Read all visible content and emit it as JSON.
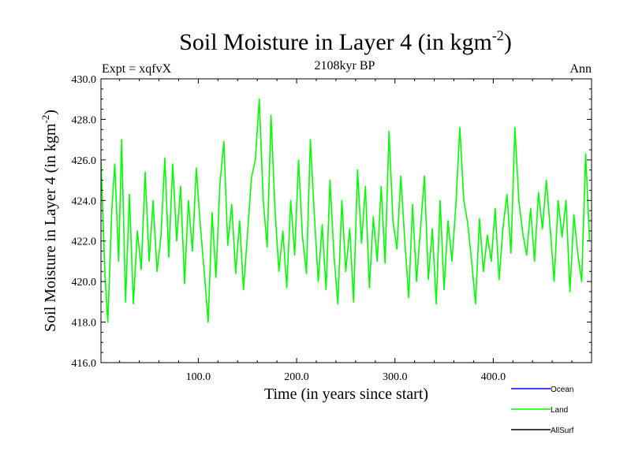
{
  "chart_data": {
    "type": "line",
    "title": "Soil Moisture in Layer 4 (in kgm",
    "title_sup": "-2",
    "title_close": ")",
    "subtitle": "2108kyr BP",
    "left_label": "Expt = xqfvX",
    "right_label": "Ann",
    "xlabel": "Time (in years since start)",
    "ylabel": "Soil Moisture in Layer 4 (in kgm",
    "ylabel_sup": "-2",
    "ylabel_close": ")",
    "xlim": [
      1,
      500
    ],
    "ylim": [
      416,
      430
    ],
    "xticks": [
      100,
      200,
      300,
      400
    ],
    "xtick_labels": [
      "100.0",
      "200.0",
      "300.0",
      "400.0"
    ],
    "yticks": [
      416,
      418,
      420,
      422,
      424,
      426,
      428,
      430
    ],
    "ytick_labels": [
      "416.0",
      "418.0",
      "420.0",
      "422.0",
      "424.0",
      "426.0",
      "428.0",
      "430.0"
    ],
    "legend": [
      {
        "name": "Ocean",
        "color": "#0000ff"
      },
      {
        "name": "Land",
        "color": "#00ff00"
      },
      {
        "name": "AllSurf",
        "color": "#000000"
      }
    ],
    "series": [
      {
        "name": "Land",
        "color": "#00ff00",
        "x": [
          1,
          5,
          8,
          12,
          15,
          19,
          22,
          26,
          30,
          34,
          38,
          42,
          46,
          50,
          54,
          58,
          62,
          66,
          70,
          74,
          78,
          82,
          86,
          90,
          94,
          98,
          102,
          106,
          110,
          114,
          118,
          122,
          126,
          130,
          134,
          138,
          142,
          146,
          150,
          154,
          158,
          162,
          166,
          170,
          174,
          178,
          182,
          186,
          190,
          194,
          198,
          202,
          206,
          210,
          214,
          218,
          222,
          226,
          230,
          234,
          238,
          242,
          246,
          250,
          254,
          258,
          262,
          266,
          270,
          274,
          278,
          282,
          286,
          290,
          294,
          298,
          302,
          306,
          310,
          314,
          318,
          322,
          326,
          330,
          334,
          338,
          342,
          346,
          350,
          354,
          358,
          362,
          366,
          370,
          374,
          378,
          382,
          386,
          390,
          394,
          398,
          402,
          406,
          410,
          414,
          418,
          422,
          426,
          430,
          434,
          438,
          442,
          446,
          450,
          454,
          458,
          462,
          466,
          470,
          474,
          478,
          482,
          486,
          490,
          494,
          498
        ],
        "values": [
          426.0,
          420.4,
          418.0,
          423.5,
          425.8,
          421.0,
          427.0,
          419.0,
          424.3,
          418.9,
          422.5,
          420.6,
          425.4,
          421.0,
          424.0,
          420.5,
          422.2,
          426.1,
          421.2,
          425.8,
          422.0,
          424.7,
          419.9,
          424.0,
          421.5,
          425.6,
          422.8,
          420.5,
          418.0,
          423.4,
          420.2,
          424.8,
          426.9,
          421.8,
          423.8,
          420.4,
          423.0,
          419.6,
          422.3,
          425.1,
          426.0,
          429.0,
          424.0,
          421.7,
          428.2,
          423.6,
          420.5,
          422.5,
          419.7,
          424.0,
          421.3,
          426.0,
          422.2,
          420.4,
          427.0,
          423.3,
          420.0,
          422.8,
          419.6,
          425.0,
          421.3,
          418.9,
          424.0,
          420.5,
          422.6,
          419.0,
          425.5,
          421.9,
          424.7,
          419.7,
          423.2,
          421.0,
          424.7,
          420.9,
          427.4,
          423.0,
          421.6,
          425.2,
          422.0,
          419.2,
          423.8,
          420.0,
          422.6,
          425.2,
          420.1,
          422.6,
          418.9,
          424.0,
          419.6,
          423.0,
          421.0,
          423.8,
          427.6,
          424.0,
          422.9,
          421.0,
          418.9,
          423.1,
          420.5,
          422.3,
          421.0,
          423.6,
          420.1,
          422.7,
          424.3,
          421.4,
          427.6,
          424.0,
          422.4,
          421.3,
          423.6,
          421.0,
          424.4,
          422.6,
          425.0,
          422.6,
          420.0,
          424.0,
          422.2,
          424.0,
          419.5,
          423.3,
          421.4,
          420.0,
          426.3,
          422.0
        ]
      }
    ]
  }
}
